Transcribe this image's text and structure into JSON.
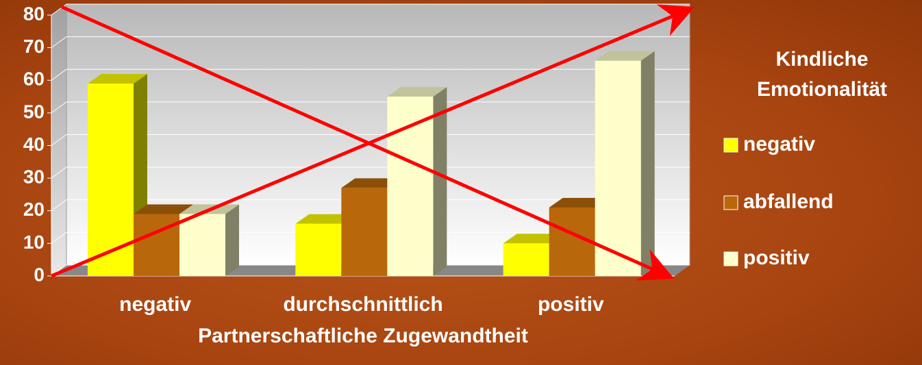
{
  "chart_data": {
    "type": "bar3d",
    "categories": [
      "negativ",
      "durchschnittlich",
      "positiv"
    ],
    "series": [
      {
        "name": "negativ",
        "color": "#ffff00",
        "values": [
          59,
          16,
          10
        ]
      },
      {
        "name": "abfallend",
        "color": "#b8680a",
        "values": [
          19,
          27,
          21
        ]
      },
      {
        "name": "positiv",
        "color": "#ffffcc",
        "values": [
          19,
          55,
          66
        ]
      }
    ],
    "ylim": [
      0,
      80
    ],
    "yticks": [
      0,
      10,
      20,
      30,
      40,
      50,
      60,
      70,
      80
    ],
    "grid": true,
    "x_label": "Partnerschaftliche Zugewandtheit",
    "legend_title": [
      "Kindliche",
      "Emotionalität"
    ],
    "legend": "right"
  }
}
